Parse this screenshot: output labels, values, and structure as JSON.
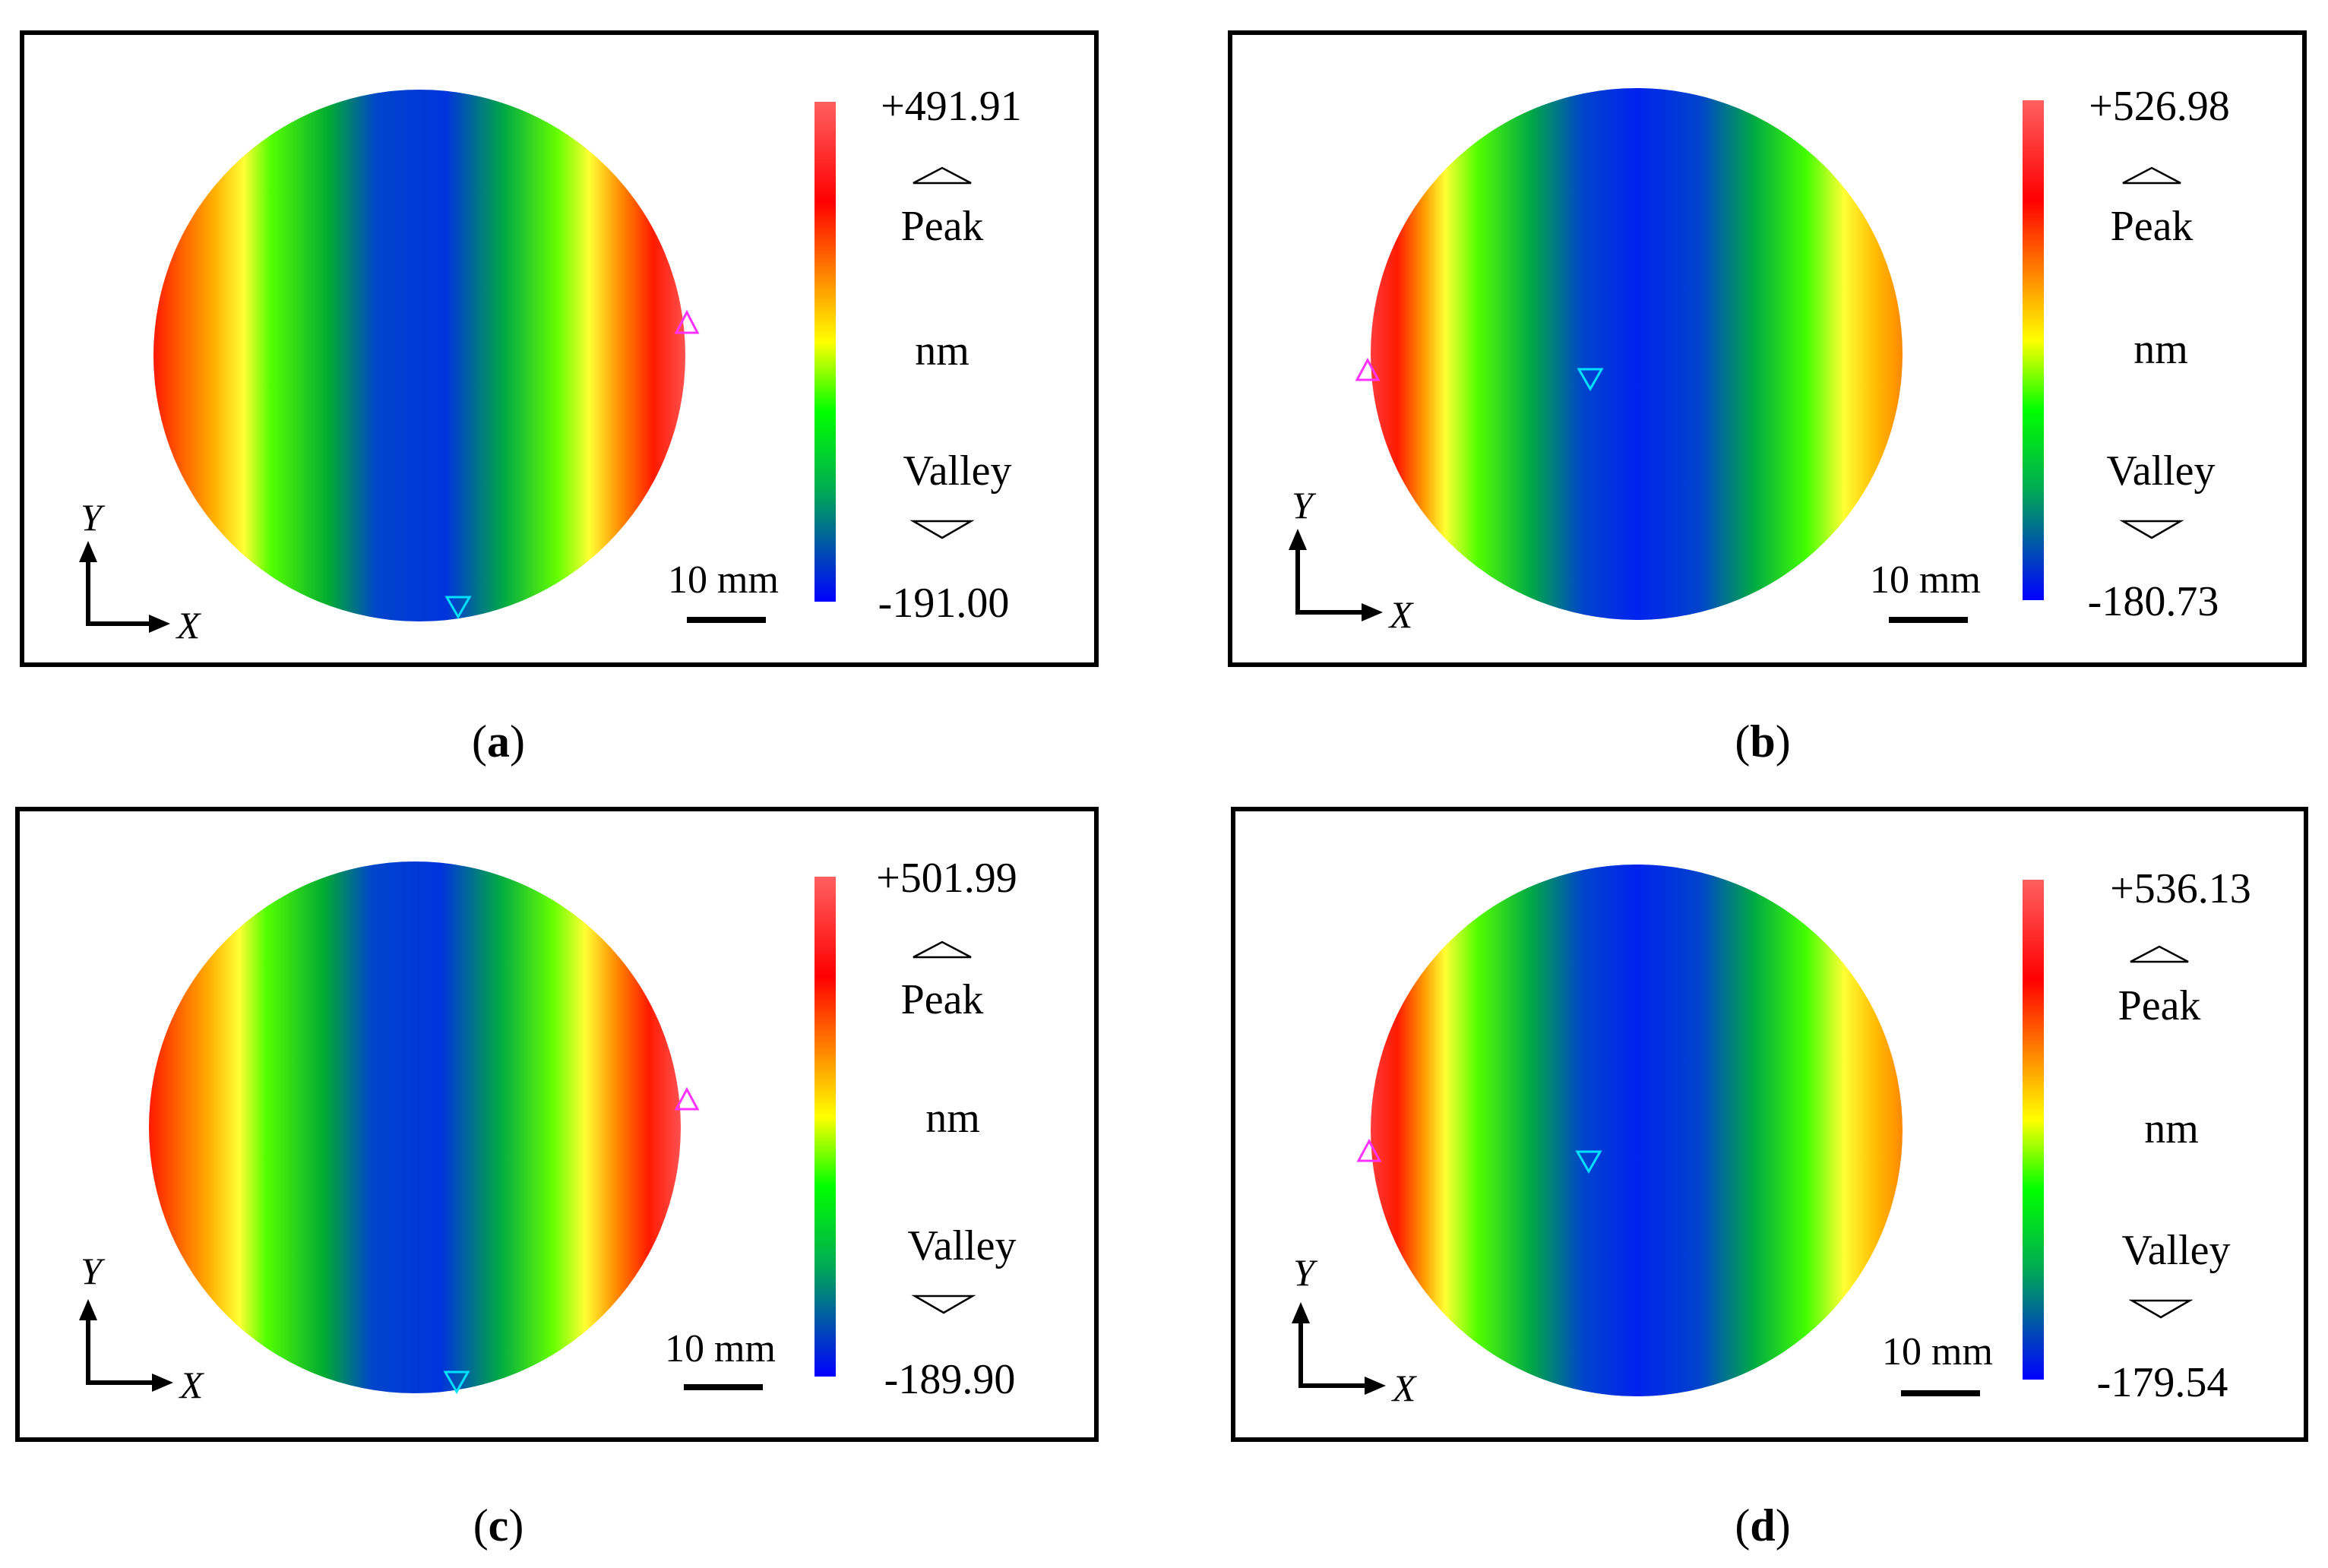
{
  "panels": [
    {
      "id": "a",
      "caption": "a",
      "scale_top": "+491.91",
      "scale_bottom": "-191.00",
      "peak_label": "Peak",
      "unit": "nm",
      "valley_label": "Valley",
      "scale_bar_label": "10 mm",
      "axis_x": "X",
      "axis_y": "Y"
    },
    {
      "id": "b",
      "caption": "b",
      "scale_top": "+526.98",
      "scale_bottom": "-180.73",
      "peak_label": "Peak",
      "unit": "nm",
      "valley_label": "Valley",
      "scale_bar_label": "10 mm",
      "axis_x": "X",
      "axis_y": "Y"
    },
    {
      "id": "c",
      "caption": "c",
      "scale_top": "+501.99",
      "scale_bottom": "-189.90",
      "peak_label": "Peak",
      "unit": "nm",
      "valley_label": "Valley",
      "scale_bar_label": "10 mm",
      "axis_x": "X",
      "axis_y": "Y"
    },
    {
      "id": "d",
      "caption": "d",
      "scale_top": "+536.13",
      "scale_bottom": "-179.54",
      "peak_label": "Peak",
      "unit": "nm",
      "valley_label": "Valley",
      "scale_bar_label": "10 mm",
      "axis_x": "X",
      "axis_y": "Y"
    }
  ],
  "colors": {
    "peak_marker": "#ff33ff",
    "valley_marker": "#00e0ff",
    "scale_top": "#ff6060",
    "scale_red": "#ff0000",
    "scale_yellow": "#ffff00",
    "scale_green": "#00ff00",
    "scale_blue": "#0000ff"
  }
}
